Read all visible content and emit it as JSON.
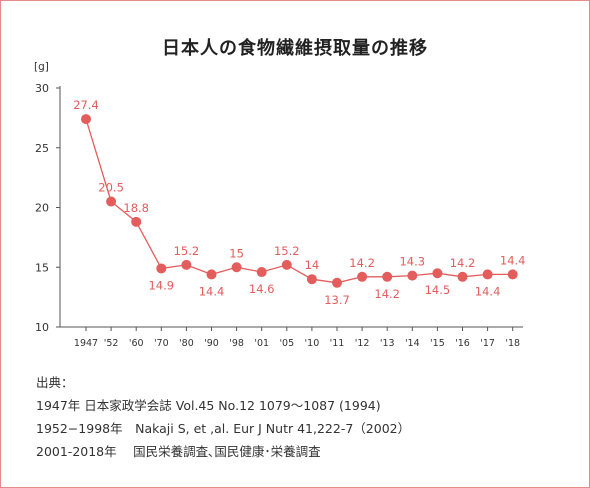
{
  "chart_data": {
    "type": "line",
    "title": "日本人の食物繊維摂取量の推移",
    "ylabel": "[g]",
    "xlabel": "",
    "ylim": [
      10,
      30
    ],
    "yticks": [
      "10",
      "15",
      "20",
      "25",
      "30"
    ],
    "grid": false,
    "legend": "none",
    "categories": [
      "1947",
      "'52",
      "'60",
      "'70",
      "'80",
      "'90",
      "'98",
      "'01",
      "'05",
      "'10",
      "'11",
      "'12",
      "'13",
      "'14",
      "'15",
      "'16",
      "'17",
      "'18"
    ],
    "values": [
      27.4,
      20.5,
      18.8,
      14.9,
      15.2,
      14.4,
      15,
      14.6,
      15.2,
      14,
      13.7,
      14.2,
      14.2,
      14.3,
      14.5,
      14.2,
      14.4,
      14.4
    ],
    "value_labels": [
      "27.4",
      "20.5",
      "18.8",
      "14.9",
      "15.2",
      "14.4",
      "15",
      "14.6",
      "15.2",
      "14",
      "13.7",
      "14.2",
      "14.2",
      "14.3",
      "14.5",
      "14.2",
      "14.4",
      "14.4"
    ],
    "colors": {
      "series": "#e35d5d",
      "axis": "#555555"
    }
  },
  "source": {
    "heading": "出典：",
    "lines": [
      "1947年 日本家政学会誌 Vol.45 No.12 1079～1087 (1994)",
      "1952−1998年　Nakaji S, et ,al. Eur J Nutr 41,222-7（2002）",
      "2001-2018年　 国民栄養調査､国民健康･栄養調査"
    ]
  }
}
